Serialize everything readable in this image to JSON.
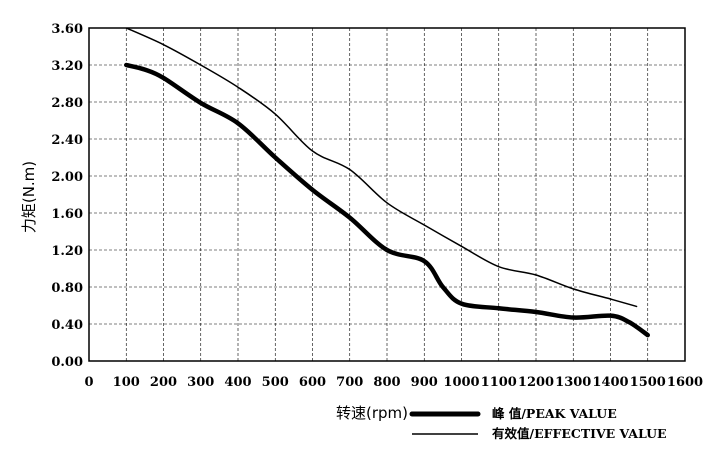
{
  "chart_data": {
    "type": "line",
    "xlabel": "转速(rpm)",
    "ylabel": "力矩(N.m)",
    "xlim": [
      0,
      1600
    ],
    "ylim": [
      0,
      3.6
    ],
    "x_ticks": [
      "0",
      "100",
      "200",
      "300",
      "400",
      "500",
      "600",
      "700",
      "800",
      "900",
      "1000",
      "1100",
      "1200",
      "1300",
      "1400",
      "1500",
      "1600"
    ],
    "y_ticks": [
      "0.00",
      "0.40",
      "0.80",
      "1.20",
      "1.60",
      "2.00",
      "2.40",
      "2.80",
      "3.20",
      "3.60"
    ],
    "grid": true,
    "legend_position": "bottom-right",
    "series": [
      {
        "name": "峰 值/PEAK VALUE",
        "color": "#000000",
        "style": "thick",
        "x": [
          100,
          150,
          200,
          300,
          400,
          500,
          600,
          700,
          800,
          900,
          950,
          1000,
          1100,
          1200,
          1300,
          1400,
          1450,
          1500
        ],
        "y": [
          3.2,
          3.15,
          3.06,
          2.79,
          2.57,
          2.2,
          1.85,
          1.55,
          1.2,
          1.08,
          0.8,
          0.62,
          0.57,
          0.53,
          0.47,
          0.49,
          0.42,
          0.28
        ]
      },
      {
        "name": "有效值/EFFECTIVE VALUE",
        "color": "#000000",
        "style": "thin",
        "x": [
          100,
          200,
          300,
          400,
          500,
          600,
          700,
          800,
          900,
          1000,
          1100,
          1200,
          1300,
          1400,
          1470
        ],
        "y": [
          3.6,
          3.42,
          3.2,
          2.96,
          2.67,
          2.27,
          2.07,
          1.71,
          1.47,
          1.24,
          1.02,
          0.93,
          0.78,
          0.67,
          0.59
        ]
      }
    ]
  }
}
